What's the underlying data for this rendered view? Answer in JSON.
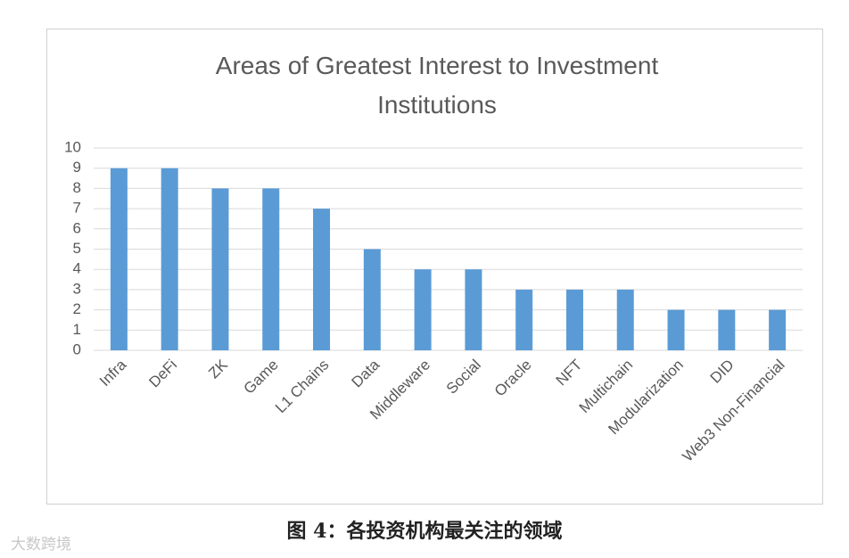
{
  "chart_data": {
    "type": "bar",
    "title": "Areas of Greatest Interest to Investment Institutions",
    "categories": [
      "Infra",
      "DeFi",
      "ZK",
      "Game",
      "L1 Chains",
      "Data",
      "Middleware",
      "Social",
      "Oracle",
      "NFT",
      "Multichain",
      "Modularization",
      "DID",
      "Web3 Non-Financial"
    ],
    "values": [
      9,
      9,
      8,
      8,
      7,
      5,
      4,
      4,
      3,
      3,
      3,
      2,
      2,
      2
    ],
    "color": "#5b9bd5",
    "ylim": [
      0,
      10
    ],
    "yticks": [
      0,
      1,
      2,
      3,
      4,
      5,
      6,
      7,
      8,
      9,
      10
    ],
    "grid": true
  },
  "caption": "图 4：各投资机构最关注的领域",
  "watermark": "大数跨境"
}
